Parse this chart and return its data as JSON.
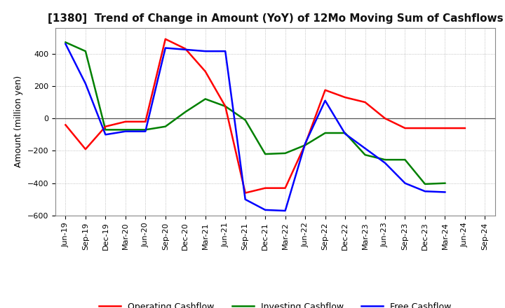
{
  "title": "[1380]  Trend of Change in Amount (YoY) of 12Mo Moving Sum of Cashflows",
  "ylabel": "Amount (million yen)",
  "xlabels": [
    "Jun-19",
    "Sep-19",
    "Dec-19",
    "Mar-20",
    "Jun-20",
    "Sep-20",
    "Dec-20",
    "Mar-21",
    "Jun-21",
    "Sep-21",
    "Dec-21",
    "Mar-22",
    "Jun-22",
    "Sep-22",
    "Dec-22",
    "Mar-23",
    "Jun-23",
    "Sep-23",
    "Dec-23",
    "Mar-24",
    "Jun-24",
    "Sep-24"
  ],
  "operating": [
    -40,
    -190,
    -50,
    -20,
    -20,
    490,
    430,
    290,
    75,
    -460,
    -430,
    -430,
    -160,
    175,
    130,
    100,
    0,
    -60,
    -60,
    -60,
    -60,
    null
  ],
  "investing": [
    470,
    415,
    -70,
    -70,
    -70,
    -50,
    40,
    120,
    75,
    -10,
    -220,
    -215,
    -165,
    -90,
    -90,
    -225,
    -255,
    -255,
    -405,
    -400,
    null,
    null
  ],
  "free": [
    460,
    215,
    -100,
    -80,
    -80,
    435,
    425,
    415,
    415,
    -500,
    -565,
    -570,
    -155,
    110,
    -95,
    -185,
    -275,
    -400,
    -450,
    -455,
    null,
    null
  ],
  "ylim": [
    -600,
    560
  ],
  "yticks": [
    -600,
    -400,
    -200,
    0,
    200,
    400
  ],
  "operating_color": "#ff0000",
  "investing_color": "#008000",
  "free_color": "#0000ff",
  "background_color": "#ffffff",
  "grid_color": "#b0b0b0",
  "title_fontsize": 11,
  "tick_fontsize": 8,
  "ylabel_fontsize": 9,
  "legend_fontsize": 9,
  "linewidth": 1.8
}
